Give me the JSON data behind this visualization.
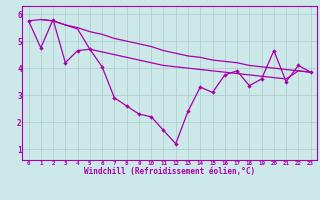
{
  "xlabel": "Windchill (Refroidissement éolien,°C)",
  "background_color": "#cce8e8",
  "line_color": "#aa00aa",
  "grid_color": "#aacccc",
  "xlim": [
    -0.5,
    23.5
  ],
  "ylim": [
    0.6,
    6.3
  ],
  "xticks": [
    0,
    1,
    2,
    3,
    4,
    5,
    6,
    7,
    8,
    9,
    10,
    11,
    12,
    13,
    14,
    15,
    16,
    17,
    18,
    19,
    20,
    21,
    22,
    23
  ],
  "yticks": [
    1,
    2,
    3,
    4,
    5,
    6
  ],
  "line1_x": [
    0,
    1,
    2,
    3,
    4,
    5,
    6,
    7,
    8,
    9,
    10,
    11,
    12,
    13,
    14,
    15,
    16,
    17,
    18,
    19,
    20,
    21,
    22,
    23
  ],
  "line1_y": [
    5.75,
    4.75,
    5.8,
    4.2,
    4.65,
    4.7,
    4.05,
    2.9,
    2.6,
    2.3,
    2.2,
    1.7,
    1.2,
    2.4,
    3.3,
    3.1,
    3.75,
    3.9,
    3.35,
    3.6,
    4.65,
    3.5,
    4.1,
    3.85
  ],
  "line2_x": [
    0,
    1,
    2,
    3,
    4,
    5,
    6,
    7,
    8,
    9,
    10,
    11,
    12,
    13,
    14,
    15,
    16,
    17,
    18,
    19,
    20,
    21,
    22,
    23
  ],
  "line2_y": [
    5.75,
    5.8,
    5.75,
    5.6,
    5.5,
    5.35,
    5.25,
    5.1,
    5.0,
    4.9,
    4.8,
    4.65,
    4.55,
    4.45,
    4.4,
    4.3,
    4.25,
    4.2,
    4.1,
    4.05,
    4.0,
    3.95,
    3.9,
    3.85
  ],
  "line3_x": [
    1,
    2,
    3,
    4,
    5,
    6,
    7,
    8,
    9,
    10,
    11,
    12,
    13,
    14,
    15,
    16,
    17,
    18,
    19,
    20,
    21,
    22,
    23
  ],
  "line3_y": [
    5.8,
    5.75,
    5.6,
    5.45,
    4.7,
    4.6,
    4.5,
    4.4,
    4.3,
    4.2,
    4.1,
    4.05,
    4.0,
    3.95,
    3.9,
    3.85,
    3.8,
    3.75,
    3.7,
    3.65,
    3.6,
    3.9,
    3.85
  ]
}
